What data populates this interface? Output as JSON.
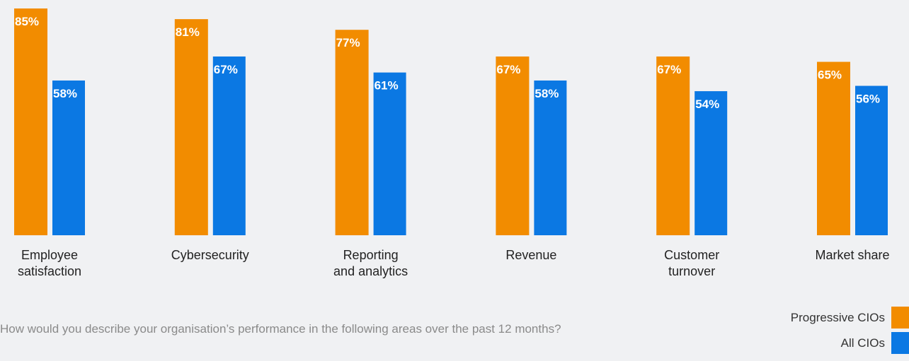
{
  "chart_data": {
    "type": "bar",
    "categories": [
      "Employee\nsatisfaction",
      "Cybersecurity",
      "Reporting\nand analytics",
      "Revenue",
      "Customer\nturnover",
      "Market share"
    ],
    "series": [
      {
        "name": "Progressive CIOs",
        "color": "#f28c00",
        "values": [
          85,
          81,
          77,
          67,
          67,
          65
        ],
        "value_labels": [
          "85%",
          "81%",
          "77%",
          "67%",
          "67%",
          "65%"
        ]
      },
      {
        "name": "All CIOs",
        "color": "#0b78e3",
        "values": [
          58,
          67,
          61,
          58,
          54,
          56
        ],
        "value_labels": [
          "58%",
          "67%",
          "61%",
          "58%",
          "54%",
          "56%"
        ]
      }
    ],
    "note": "How would you describe your organisation’s performance in the following areas over the past 12 months?"
  }
}
